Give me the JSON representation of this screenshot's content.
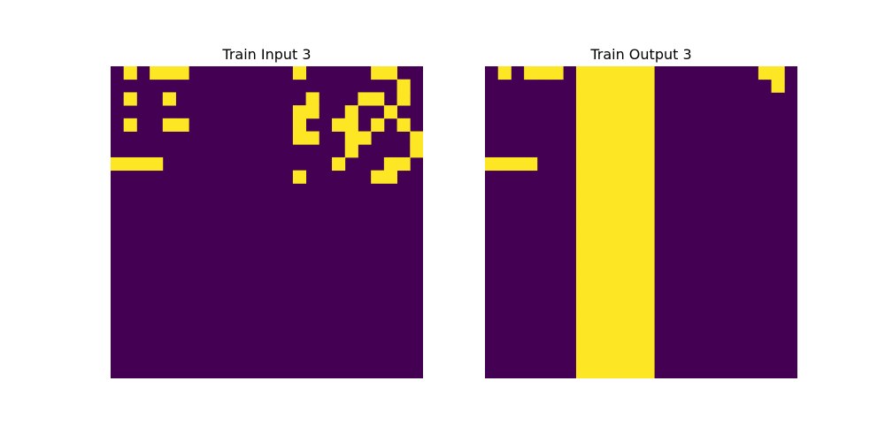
{
  "panels": [
    {
      "title": "Train Input 3",
      "rows": [
        "010111000000001000001100",
        "000000000000000000000010",
        "010010000000000100011010",
        "000000000000001100100100",
        "010011000000001001101010",
        "000000000000001100110001",
        "000000000000000000100001",
        "111100000000000001000110",
        "000000000000001000001100",
        "000000000000000000000000",
        "000000000000000000000000",
        "000000000000000000000000",
        "000000000000000000000000",
        "000000000000000000000000",
        "000000000000000000000000",
        "000000000000000000000000",
        "000000000000000000000000",
        "000000000000000000000000",
        "000000000000000000000000",
        "000000000000000000000000",
        "000000000000000000000000",
        "000000000000000000000000",
        "000000000000000000000000",
        "000000000000000000000000"
      ],
      "palette": {
        "0": "#440154",
        "1": "#fde725"
      }
    },
    {
      "title": "Train Output 3",
      "rows": [
        "010111011111100000000110",
        "000000011111100000000010",
        "000000011111100000000000",
        "000000011111100000000000",
        "000000011111100000000000",
        "000000011111100000000000",
        "000000011111100000000000",
        "111100011111100000000000",
        "000000011111100000000000",
        "000000011111100000000000",
        "000000011111100000000000",
        "000000011111100000000000",
        "000000011111100000000000",
        "000000011111100000000000",
        "000000011111100000000000",
        "000000011111100000000000",
        "000000011111100000000000",
        "000000011111100000000000",
        "000000011111100000000000",
        "000000011111100000000000",
        "000000011111100000000000",
        "000000011111100000000000",
        "000000011111100000000000",
        "000000011111100000000000"
      ],
      "palette": {
        "0": "#440154",
        "1": "#fde725",
        "2": "#35b779"
      }
    }
  ]
}
